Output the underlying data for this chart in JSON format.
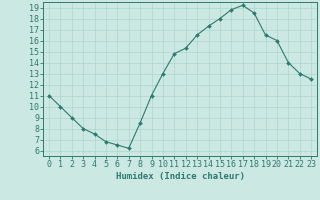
{
  "x": [
    0,
    1,
    2,
    3,
    4,
    5,
    6,
    7,
    8,
    9,
    10,
    11,
    12,
    13,
    14,
    15,
    16,
    17,
    18,
    19,
    20,
    21,
    22,
    23
  ],
  "y": [
    11,
    10,
    9,
    8,
    7.5,
    6.8,
    6.5,
    6.2,
    8.5,
    11,
    13,
    14.8,
    15.3,
    16.5,
    17.3,
    18,
    18.8,
    19.2,
    18.5,
    16.5,
    16,
    14,
    13,
    12.5
  ],
  "line_color": "#2d7a6e",
  "marker": "D",
  "marker_size": 2.0,
  "bg_color": "#cce8e2",
  "grid_color": "#b0d4cf",
  "xlabel": "Humidex (Indice chaleur)",
  "xlim": [
    -0.5,
    23.5
  ],
  "ylim": [
    5.5,
    19.5
  ],
  "yticks": [
    6,
    7,
    8,
    9,
    10,
    11,
    12,
    13,
    14,
    15,
    16,
    17,
    18,
    19
  ],
  "xticks": [
    0,
    1,
    2,
    3,
    4,
    5,
    6,
    7,
    8,
    9,
    10,
    11,
    12,
    13,
    14,
    15,
    16,
    17,
    18,
    19,
    20,
    21,
    22,
    23
  ],
  "tick_color": "#2d7a6e",
  "axis_color": "#2d7a6e",
  "label_fontsize": 6.5,
  "tick_fontsize": 6.0
}
